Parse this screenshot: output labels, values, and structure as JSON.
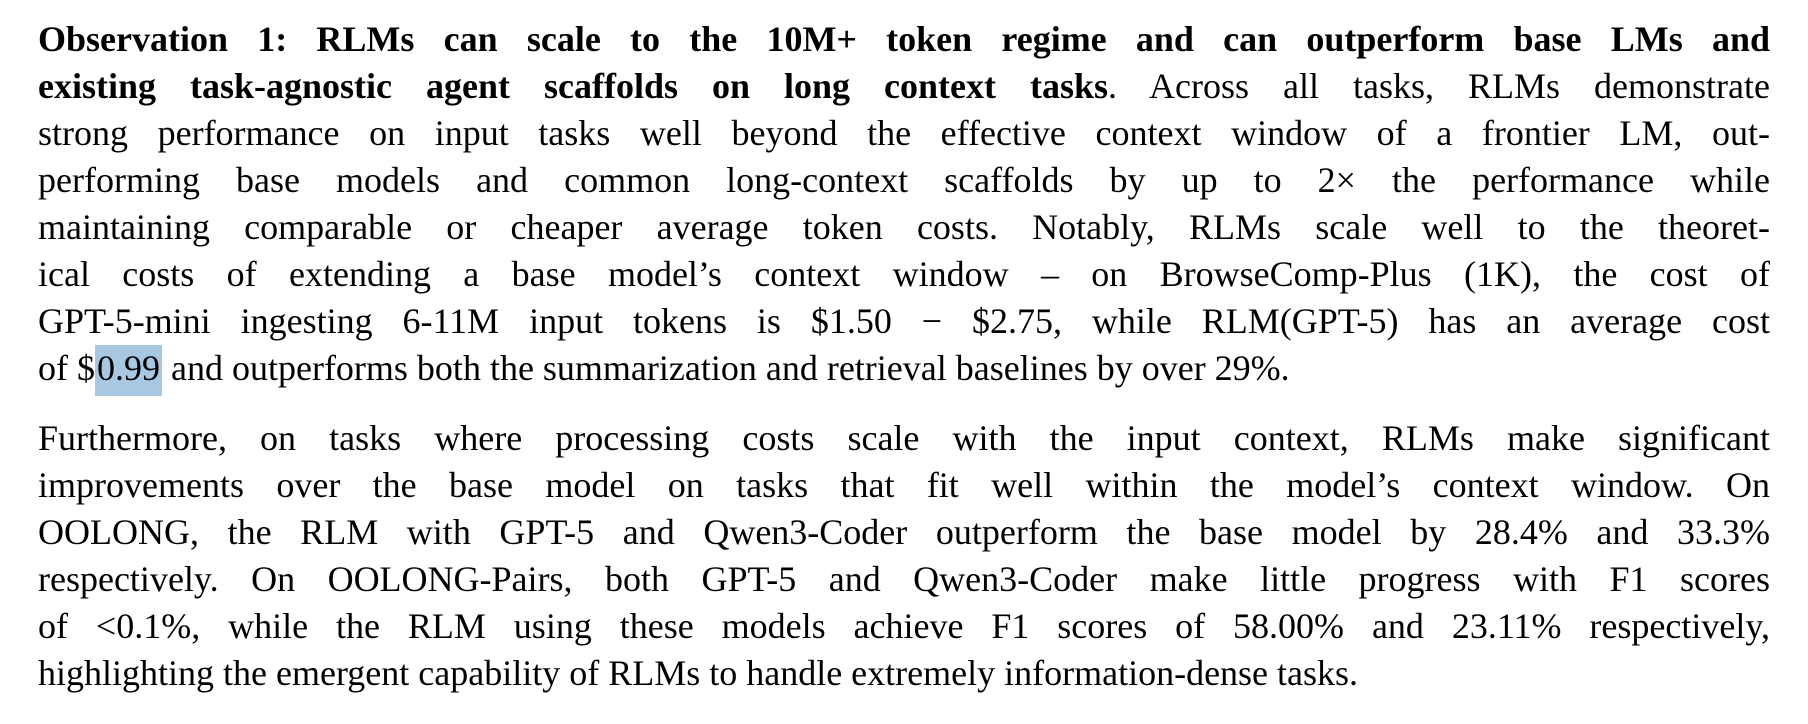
{
  "colors": {
    "background": "#ffffff",
    "text": "#000000",
    "highlight": "#a7c8e2"
  },
  "document": {
    "paragraphs": [
      {
        "name": "paragraph-observation-1",
        "lines": [
          {
            "last": false,
            "segments": [
              {
                "style": "bold",
                "text": "Observation 1: RLMs can scale to the 10M+ token regime and can outperform base LMs and"
              }
            ]
          },
          {
            "last": false,
            "segments": [
              {
                "style": "bold",
                "text": "existing task-agnostic agent scaffolds on long context tasks"
              },
              {
                "style": "regular",
                "text": ". Across all tasks, RLMs demonstrate"
              }
            ]
          },
          {
            "last": false,
            "segments": [
              {
                "style": "regular",
                "text": "strong performance on input tasks well beyond the effective context window of a frontier LM, out-"
              }
            ]
          },
          {
            "last": false,
            "segments": [
              {
                "style": "regular",
                "text": "performing base models and common long-context scaffolds by up to 2× the performance while"
              }
            ]
          },
          {
            "last": false,
            "segments": [
              {
                "style": "regular",
                "text": "maintaining comparable or cheaper average token costs. Notably, RLMs scale well to the theoret-"
              }
            ]
          },
          {
            "last": false,
            "segments": [
              {
                "style": "regular",
                "text": "ical costs of extending a base model’s context window – on BrowseComp-Plus (1K), the cost of"
              }
            ]
          },
          {
            "last": false,
            "segments": [
              {
                "style": "regular",
                "text": "GPT-5-mini ingesting 6-11M input tokens is $1.50 − $2.75, while RLM(GPT-5) has an average cost"
              }
            ]
          },
          {
            "last": true,
            "segments": [
              {
                "style": "regular",
                "text": "of $"
              },
              {
                "style": "highlight",
                "text": "0.99"
              },
              {
                "style": "regular",
                "text": " and outperforms both the summarization and retrieval baselines by over 29%."
              }
            ]
          }
        ]
      },
      {
        "name": "paragraph-furthermore",
        "lines": [
          {
            "last": false,
            "segments": [
              {
                "style": "regular",
                "text": "Furthermore, on tasks where processing costs scale with the input context, RLMs make significant"
              }
            ]
          },
          {
            "last": false,
            "segments": [
              {
                "style": "regular",
                "text": "improvements over the base model on tasks that fit well within the model’s context window.  On"
              }
            ]
          },
          {
            "last": false,
            "segments": [
              {
                "style": "regular",
                "text": "OOLONG, the RLM with GPT-5 and Qwen3-Coder outperform the base model by 28.4% and 33.3%"
              }
            ]
          },
          {
            "last": false,
            "segments": [
              {
                "style": "regular",
                "text": "respectively. On OOLONG-Pairs, both GPT-5 and Qwen3-Coder make little progress with F1 scores"
              }
            ]
          },
          {
            "last": false,
            "segments": [
              {
                "style": "regular",
                "text": "of <0.1%, while the RLM using these models achieve F1 scores of 58.00% and 23.11% respectively,"
              }
            ]
          },
          {
            "last": true,
            "segments": [
              {
                "style": "regular",
                "text": "highlighting the emergent capability of RLMs to handle extremely information-dense tasks."
              }
            ]
          }
        ]
      }
    ]
  }
}
